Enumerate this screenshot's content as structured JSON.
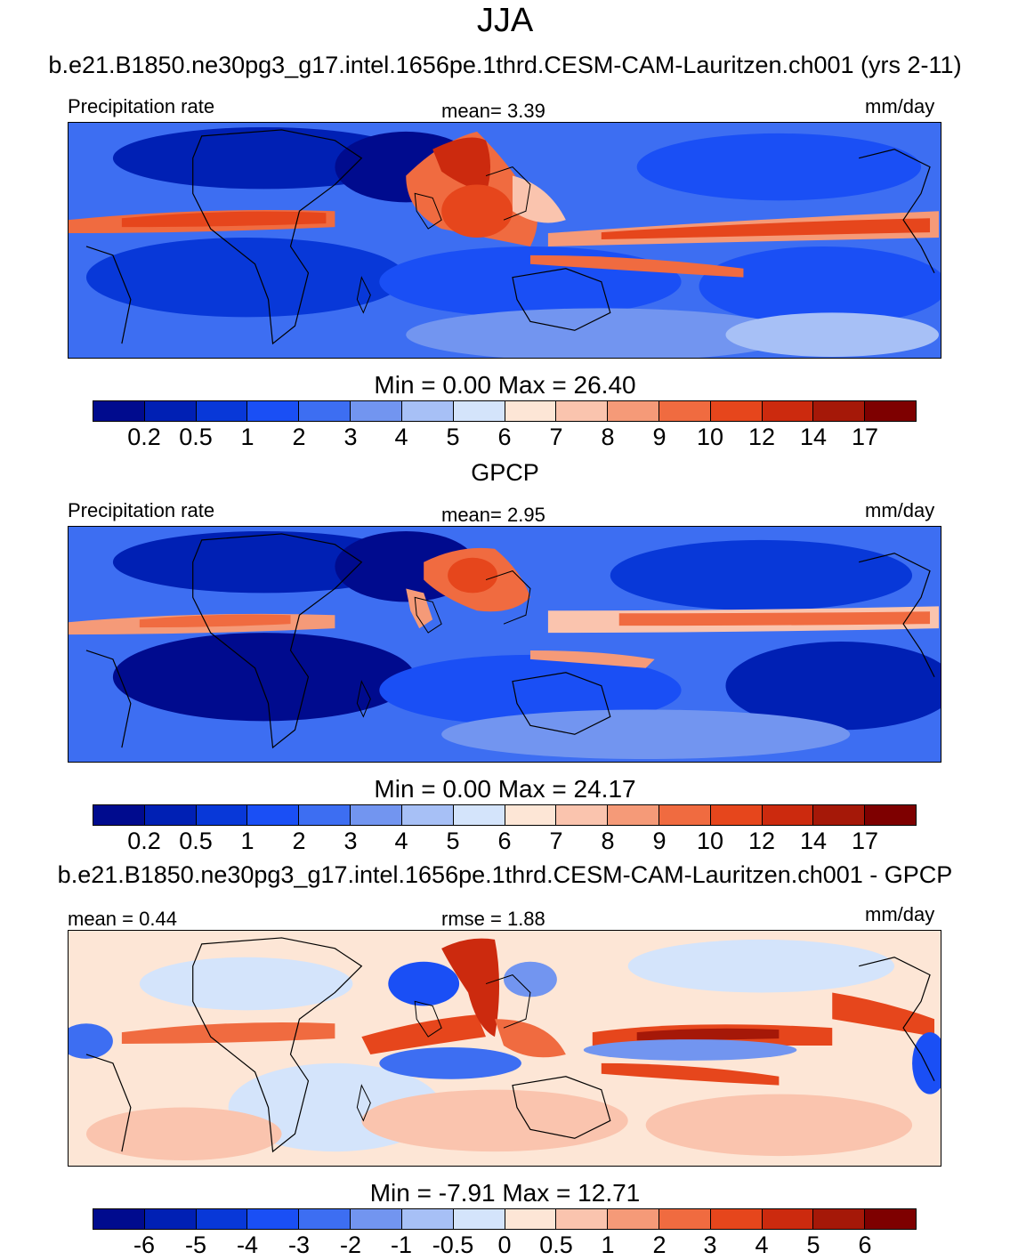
{
  "title": "JJA",
  "panel1": {
    "subtitle": "b.e21.B1850.ne30pg3_g17.intel.1656pe.1thrd.CESM-CAM-Lauritzen.ch001 (yrs 2-11)",
    "left_label": "Precipitation rate",
    "center_label": "mean=   3.39",
    "right_label": "mm/day",
    "minmax": "Min =   0.00 Max =  26.40",
    "colorbar_ticks": [
      "0.2",
      "0.5",
      "1",
      "2",
      "3",
      "4",
      "5",
      "6",
      "7",
      "8",
      "9",
      "10",
      "12",
      "14",
      "17"
    ]
  },
  "panel2": {
    "subtitle": "GPCP",
    "left_label": "Precipitation rate",
    "center_label": "mean=   2.95",
    "right_label": "mm/day",
    "minmax": "Min =   0.00 Max =  24.17",
    "colorbar_ticks": [
      "0.2",
      "0.5",
      "1",
      "2",
      "3",
      "4",
      "5",
      "6",
      "7",
      "8",
      "9",
      "10",
      "12",
      "14",
      "17"
    ]
  },
  "panel3": {
    "subtitle": "b.e21.B1850.ne30pg3_g17.intel.1656pe.1thrd.CESM-CAM-Lauritzen.ch001 - GPCP",
    "left_label": "mean =   0.44",
    "center_label": "rmse =   1.88",
    "right_label": "mm/day",
    "minmax": "Min =  -7.91 Max =  12.71",
    "colorbar_ticks": [
      "-6",
      "-5",
      "-4",
      "-3",
      "-2",
      "-1",
      "-0.5",
      "0",
      "0.5",
      "1",
      "2",
      "3",
      "4",
      "5",
      "6"
    ]
  },
  "colors": {
    "palette": [
      "#000b8e",
      "#0020b4",
      "#0838d8",
      "#1a4ff5",
      "#3d6ef2",
      "#7295f0",
      "#a7c0f6",
      "#d4e4fb",
      "#fde6d6",
      "#fac4ae",
      "#f59a78",
      "#f06b40",
      "#e6461c",
      "#cc2a0e",
      "#a51808",
      "#7e0000"
    ]
  }
}
